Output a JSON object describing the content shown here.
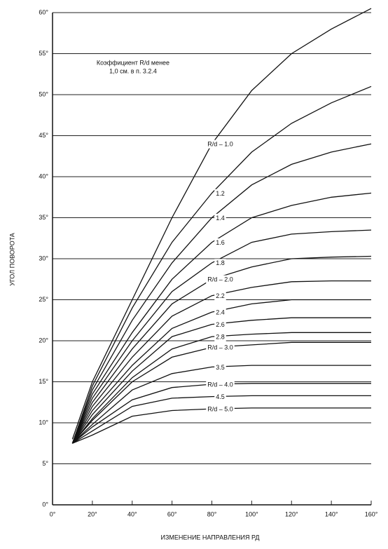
{
  "chart_data": {
    "type": "line",
    "y_label": "УГОЛ ПОВОРОТА",
    "x_label": "ИЗМЕНЕНИЕ НАПРАВЛЕНИЯ РД",
    "annotation": [
      "Коэффициент R/d менее",
      "1,0 см. в п. 3.2.4"
    ],
    "x": [
      10,
      20,
      40,
      60,
      80,
      100,
      120,
      140,
      160
    ],
    "xlim": [
      0,
      160
    ],
    "ylim": [
      0,
      60
    ],
    "xticks": [
      {
        "value": 0,
        "label": "0°"
      },
      {
        "value": 20,
        "label": "20°"
      },
      {
        "value": 40,
        "label": "40°"
      },
      {
        "value": 60,
        "label": "60°"
      },
      {
        "value": 80,
        "label": "80°"
      },
      {
        "value": 100,
        "label": "100°"
      },
      {
        "value": 120,
        "label": "120°"
      },
      {
        "value": 140,
        "label": "140°"
      },
      {
        "value": 160,
        "label": "160°"
      }
    ],
    "yticks": [
      {
        "value": 0,
        "label": "0°"
      },
      {
        "value": 5,
        "label": "5°"
      },
      {
        "value": 10,
        "label": "10°"
      },
      {
        "value": 15,
        "label": "15°"
      },
      {
        "value": 20,
        "label": "20°"
      },
      {
        "value": 25,
        "label": "25°"
      },
      {
        "value": 30,
        "label": "30°"
      },
      {
        "value": 35,
        "label": "35°"
      },
      {
        "value": 40,
        "label": "40°"
      },
      {
        "value": 45,
        "label": "45°"
      },
      {
        "value": 50,
        "label": "50°"
      },
      {
        "value": 55,
        "label": "55°"
      },
      {
        "value": 60,
        "label": "60°"
      }
    ],
    "grid": true,
    "color": "#111111",
    "series": [
      {
        "name": "R/d – 1.0",
        "values": [
          8,
          15,
          25,
          35,
          44,
          50.5,
          55,
          58,
          60.5
        ]
      },
      {
        "name": "1.2",
        "values": [
          7.5,
          14.5,
          24,
          32,
          38,
          43,
          46.5,
          49,
          51
        ]
      },
      {
        "name": "1.4",
        "values": [
          7.5,
          14,
          22.5,
          29.5,
          35,
          39,
          41.5,
          43,
          44
        ]
      },
      {
        "name": "1.6",
        "values": [
          7.5,
          13.5,
          21,
          27.5,
          32,
          35,
          36.5,
          37.5,
          38
        ]
      },
      {
        "name": "1.8",
        "values": [
          7.5,
          13,
          20,
          26,
          29.5,
          32,
          33,
          33.3,
          33.5
        ]
      },
      {
        "name": "R/d – 2.0",
        "values": [
          7.5,
          12.5,
          19,
          24.5,
          27.5,
          29,
          30,
          30.2,
          30.3
        ]
      },
      {
        "name": "2.2",
        "values": [
          7.5,
          12,
          18,
          23,
          25.5,
          26.5,
          27.2,
          27.3,
          27.3
        ]
      },
      {
        "name": "2.4",
        "values": [
          7.5,
          11.5,
          17,
          21.5,
          23.5,
          24.5,
          25,
          25,
          25
        ]
      },
      {
        "name": "2.6",
        "values": [
          7.5,
          11,
          16.3,
          20.5,
          22,
          22.5,
          22.8,
          22.8,
          22.8
        ]
      },
      {
        "name": "2.8",
        "values": [
          7.5,
          10.5,
          15.5,
          19,
          20.5,
          20.8,
          21,
          21,
          21
        ]
      },
      {
        "name": "R/d – 3.0",
        "values": [
          7.5,
          10.3,
          15,
          18,
          19.2,
          19.5,
          19.8,
          19.8,
          19.8
        ]
      },
      {
        "name": "3.5",
        "values": [
          7.5,
          9.8,
          14,
          16,
          16.8,
          17,
          17,
          17,
          17
        ]
      },
      {
        "name": "R/d – 4.0",
        "values": [
          7.5,
          9.5,
          12.8,
          14.3,
          14.7,
          14.8,
          14.8,
          14.8,
          14.8
        ]
      },
      {
        "name": "4.5",
        "values": [
          7.5,
          9,
          12,
          13,
          13.2,
          13.3,
          13.3,
          13.3,
          13.3
        ]
      },
      {
        "name": "R/d – 5.0",
        "values": [
          7.5,
          8.5,
          10.8,
          11.5,
          11.7,
          11.8,
          11.8,
          11.8,
          11.8
        ]
      }
    ]
  }
}
